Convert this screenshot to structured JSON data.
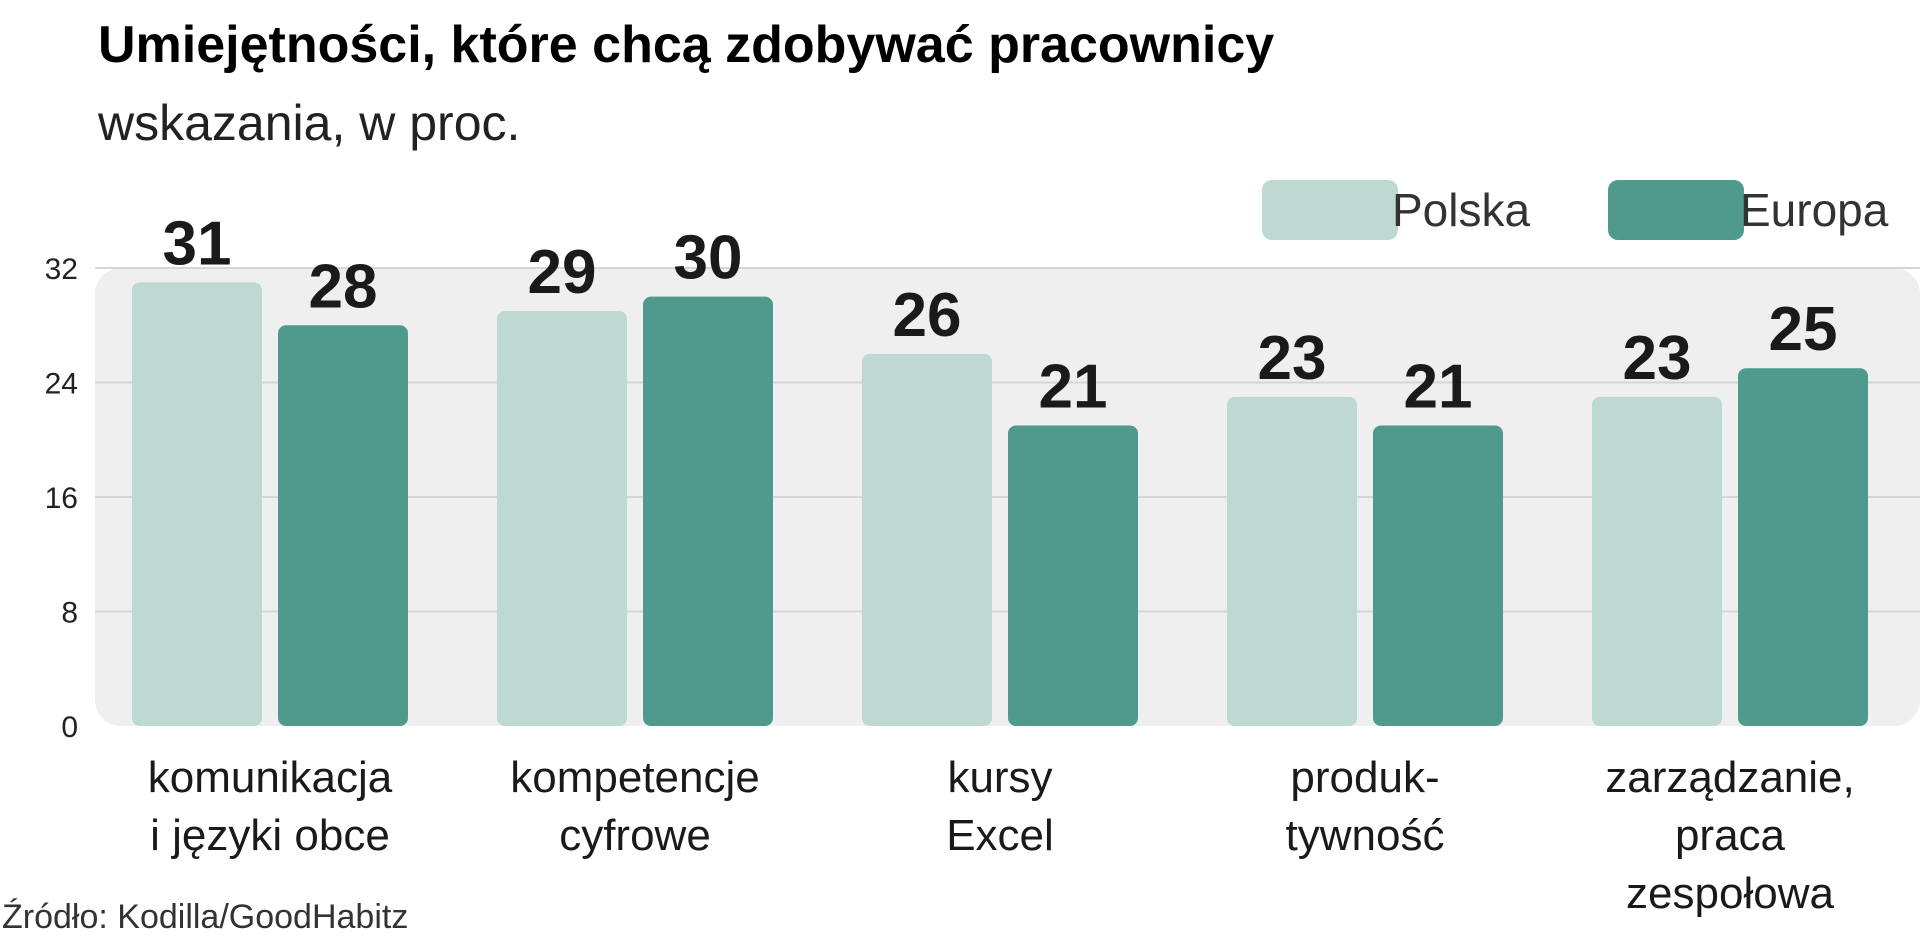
{
  "chart_data": {
    "type": "bar",
    "title": "Umiejętności, które chcą zdobywać pracownicy",
    "subtitle": "wskazania, w proc.",
    "categories": [
      [
        "komunikacja",
        "i języki obce"
      ],
      [
        "kompetencje",
        "cyfrowe"
      ],
      [
        "kursy",
        "Excel"
      ],
      [
        "produk-",
        "tywność"
      ],
      [
        "zarządzanie,",
        "praca",
        "zespołowa"
      ]
    ],
    "series": [
      {
        "name": "Polska",
        "values": [
          31,
          29,
          26,
          23,
          23
        ],
        "color": "#bdd9d1"
      },
      {
        "name": "Europa",
        "values": [
          28,
          30,
          21,
          21,
          25
        ],
        "color": "#4f9a8c"
      }
    ],
    "ylim": [
      0,
      32
    ],
    "yticks": [
      "0",
      "8",
      "16",
      "24",
      "32"
    ],
    "grid": true,
    "legend_position": "top-right",
    "source": "Źródło: Kodilla/GoodHabitz",
    "colors": {
      "panel": "#efefef",
      "gridline": "#d6d6d6"
    }
  }
}
